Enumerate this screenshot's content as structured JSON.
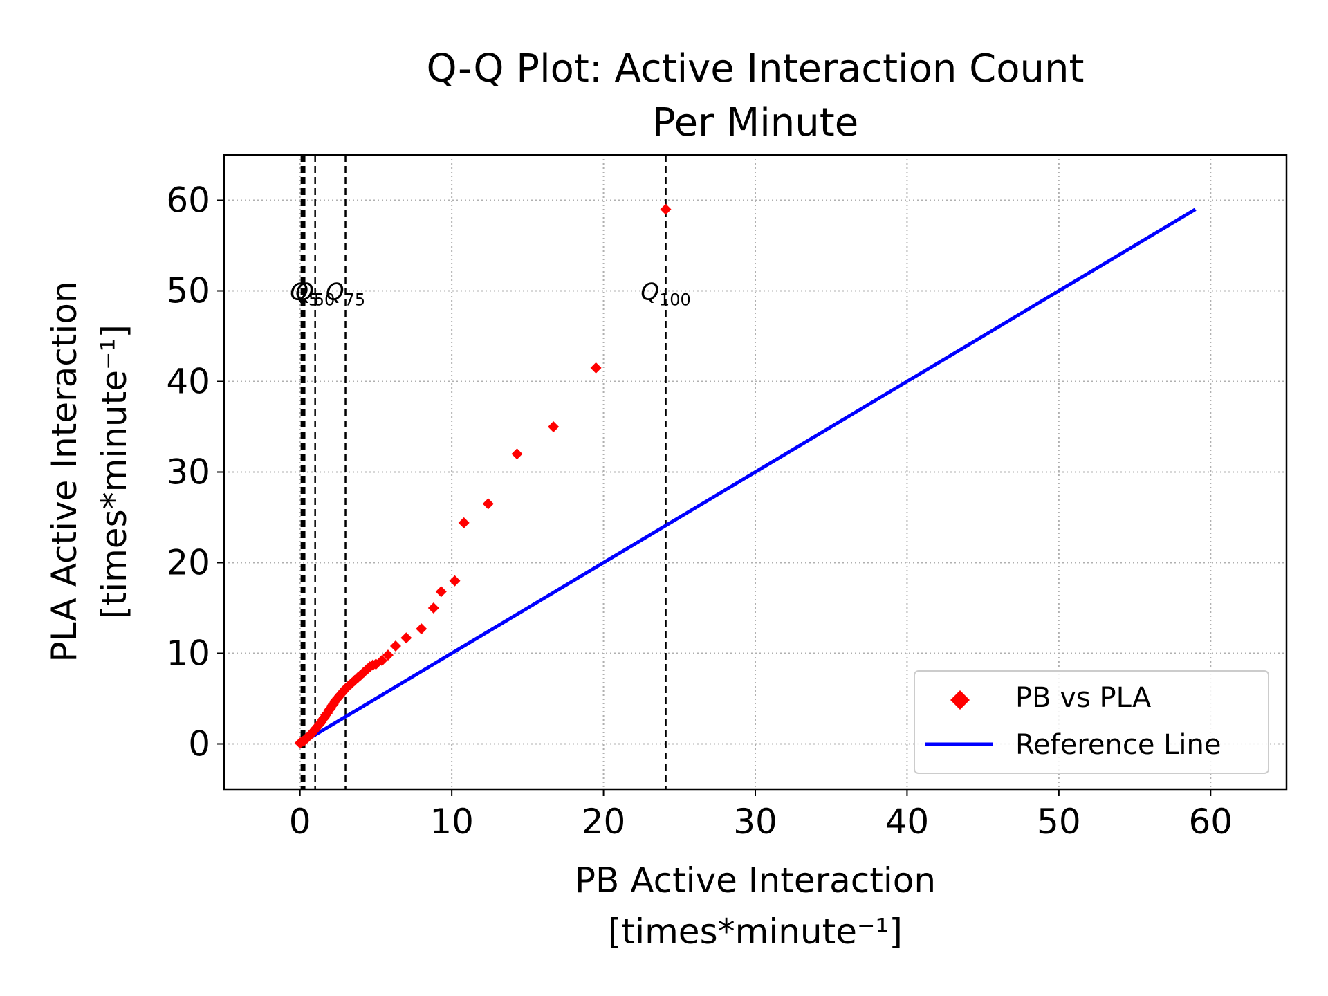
{
  "chart_data": {
    "type": "scatter",
    "title_lines": [
      "Q-Q Plot: Active Interaction Count",
      "Per Minute"
    ],
    "xlabel_lines": [
      "PB Active Interaction",
      "[times*minute⁻¹]"
    ],
    "ylabel_lines": [
      "PLA Active Interaction",
      "[times*minute⁻¹]"
    ],
    "xlim": [
      -5,
      65
    ],
    "ylim": [
      -5,
      65
    ],
    "xticks": [
      0,
      10,
      20,
      30,
      40,
      50,
      60
    ],
    "yticks": [
      0,
      10,
      20,
      30,
      40,
      50,
      60
    ],
    "grid": true,
    "legend_position": "bottom-right",
    "series": [
      {
        "name": "PB vs PLA",
        "kind": "scatter",
        "marker": "diamond",
        "color": "#ff0000",
        "x": [
          0.0,
          0.1,
          0.2,
          0.3,
          0.4,
          0.5,
          0.6,
          0.7,
          0.8,
          0.9,
          1.0,
          1.1,
          1.2,
          1.3,
          1.4,
          1.5,
          1.6,
          1.7,
          1.8,
          1.9,
          2.0,
          2.1,
          2.2,
          2.3,
          2.4,
          2.5,
          2.6,
          2.7,
          2.8,
          2.9,
          3.0,
          3.2,
          3.4,
          3.6,
          3.8,
          4.0,
          4.2,
          4.4,
          4.6,
          4.8,
          5.0,
          5.4,
          5.8,
          6.3,
          7.0,
          8.0,
          8.8,
          9.3,
          10.2,
          10.8,
          12.4,
          14.3,
          16.7,
          19.5,
          24.1
        ],
        "y": [
          0.1,
          0.2,
          0.3,
          0.4,
          0.6,
          0.7,
          0.9,
          1.0,
          1.2,
          1.4,
          1.6,
          1.8,
          2.0,
          2.2,
          2.4,
          2.7,
          2.9,
          3.2,
          3.4,
          3.7,
          3.9,
          4.2,
          4.4,
          4.7,
          4.9,
          5.1,
          5.3,
          5.5,
          5.7,
          5.9,
          6.1,
          6.4,
          6.7,
          7.0,
          7.3,
          7.6,
          7.9,
          8.2,
          8.5,
          8.7,
          8.8,
          9.2,
          9.8,
          10.8,
          11.7,
          12.7,
          15.0,
          16.8,
          18.0,
          24.4,
          26.5,
          32.0,
          35.0,
          41.5,
          59.0
        ]
      },
      {
        "name": "Reference Line",
        "kind": "line",
        "color": "#0000ff",
        "x": [
          0,
          59
        ],
        "y": [
          0,
          59
        ]
      }
    ],
    "quantile_lines": [
      {
        "x": 0.1,
        "label": ""
      },
      {
        "x": 0.2,
        "label": ""
      },
      {
        "x": 0.3,
        "label": "Q",
        "sub": "5"
      },
      {
        "x": 1.0,
        "label": "Q",
        "sub": "50"
      },
      {
        "x": 3.0,
        "label": "Q",
        "sub": "75"
      },
      {
        "x": 24.1,
        "label": "Q",
        "sub": "100"
      }
    ],
    "quantile_label_y": 49
  }
}
